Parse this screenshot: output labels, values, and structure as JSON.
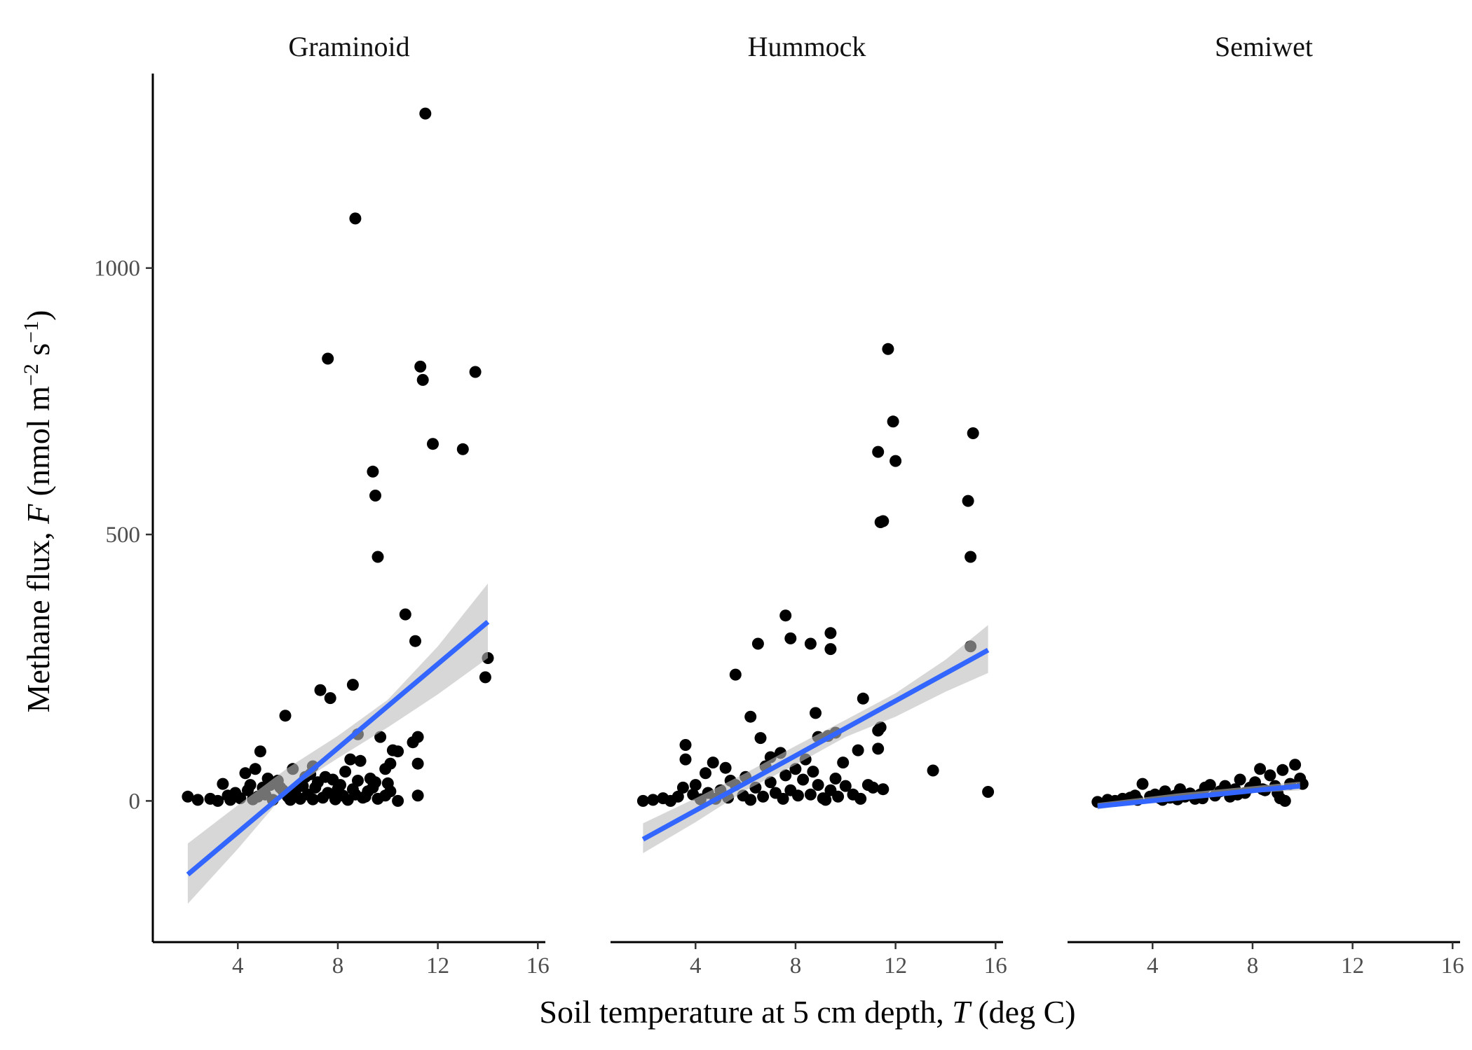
{
  "chart_data": {
    "type": "scatter",
    "layout": "faceted, 3 panels sharing y-axis, linear fit with confidence band",
    "xlabel_parts": [
      "Soil temperature at 5 cm depth, ",
      "T",
      " (deg C)"
    ],
    "ylabel_parts": [
      "Methane flux, ",
      "F",
      " (nmol m",
      "−2",
      " s",
      "−1",
      ")"
    ],
    "xlim": [
      0.6,
      16.3
    ],
    "ylim": [
      -265,
      1365
    ],
    "x_ticks": [
      4,
      8,
      12,
      16
    ],
    "y_ticks": [
      0,
      500,
      1000
    ],
    "x_tick_labels": [
      "4",
      "8",
      "12",
      "16"
    ],
    "y_tick_labels": [
      "0",
      "500",
      "1000"
    ],
    "grid": false,
    "colors": {
      "points": "#000000",
      "fit_line": "#3366ff",
      "ci_band": "#bdbdbd"
    },
    "panels": [
      {
        "title": "Graminoid",
        "fit": {
          "x": [
            2.0,
            14.0
          ],
          "y": [
            -138,
            336
          ]
        },
        "ci": {
          "x": [
            2.0,
            4.0,
            6.0,
            8.0,
            10.0,
            12.0,
            14.0
          ],
          "upper": [
            -80,
            -8,
            62,
            122,
            190,
            290,
            408
          ],
          "lower": [
            -193,
            -90,
            20,
            80,
            138,
            200,
            268
          ]
        },
        "points": [
          [
            11.5,
            1290
          ],
          [
            8.7,
            1093
          ],
          [
            7.6,
            830
          ],
          [
            11.3,
            815
          ],
          [
            11.4,
            790
          ],
          [
            13.5,
            805
          ],
          [
            11.8,
            670
          ],
          [
            13.0,
            660
          ],
          [
            9.4,
            618
          ],
          [
            9.5,
            573
          ],
          [
            9.6,
            458
          ],
          [
            10.7,
            350
          ],
          [
            11.1,
            300
          ],
          [
            14.0,
            268
          ],
          [
            13.9,
            232
          ],
          [
            8.6,
            218
          ],
          [
            7.3,
            208
          ],
          [
            7.7,
            193
          ],
          [
            5.9,
            160
          ],
          [
            8.8,
            125
          ],
          [
            9.7,
            120
          ],
          [
            11.2,
            120
          ],
          [
            11.0,
            110
          ],
          [
            10.2,
            95
          ],
          [
            10.4,
            93
          ],
          [
            4.9,
            93
          ],
          [
            11.2,
            70
          ],
          [
            10.1,
            70
          ],
          [
            8.5,
            78
          ],
          [
            8.9,
            75
          ],
          [
            6.2,
            60
          ],
          [
            4.7,
            60
          ],
          [
            4.3,
            52
          ],
          [
            7.0,
            65
          ],
          [
            5.2,
            42
          ],
          [
            3.4,
            32
          ],
          [
            4.5,
            30
          ],
          [
            6.7,
            45
          ],
          [
            5.6,
            38
          ],
          [
            9.9,
            60
          ],
          [
            9.3,
            42
          ],
          [
            10.0,
            33
          ],
          [
            9.5,
            35
          ],
          [
            8.1,
            30
          ],
          [
            8.6,
            22
          ],
          [
            2.0,
            8
          ],
          [
            2.4,
            2
          ],
          [
            2.9,
            4
          ],
          [
            3.2,
            0
          ],
          [
            3.6,
            10
          ],
          [
            3.9,
            15
          ],
          [
            4.1,
            5
          ],
          [
            4.4,
            20
          ],
          [
            4.8,
            8
          ],
          [
            5.1,
            12
          ],
          [
            5.4,
            2
          ],
          [
            5.7,
            25
          ],
          [
            6.0,
            8
          ],
          [
            6.3,
            18
          ],
          [
            6.5,
            4
          ],
          [
            6.8,
            12
          ],
          [
            7.1,
            25
          ],
          [
            7.4,
            6
          ],
          [
            7.6,
            15
          ],
          [
            7.9,
            3
          ],
          [
            8.2,
            10
          ],
          [
            8.4,
            2
          ],
          [
            8.7,
            12
          ],
          [
            9.0,
            6
          ],
          [
            9.2,
            18
          ],
          [
            9.6,
            4
          ],
          [
            9.9,
            10
          ],
          [
            10.4,
            0
          ],
          [
            11.2,
            10
          ],
          [
            7.2,
            35
          ],
          [
            6.6,
            28
          ],
          [
            5.8,
            20
          ],
          [
            5.0,
            25
          ],
          [
            7.8,
            40
          ],
          [
            8.0,
            22
          ],
          [
            6.9,
            50
          ],
          [
            7.5,
            45
          ],
          [
            8.3,
            55
          ],
          [
            9.1,
            8
          ],
          [
            8.8,
            38
          ],
          [
            7.0,
            3
          ],
          [
            6.1,
            2
          ],
          [
            5.3,
            30
          ],
          [
            4.6,
            3
          ],
          [
            3.7,
            2
          ],
          [
            10.1,
            18
          ],
          [
            9.4,
            25
          ]
        ]
      },
      {
        "title": "Hummock",
        "fit": {
          "x": [
            1.9,
            15.7
          ],
          "y": [
            -72,
            283
          ]
        },
        "ci": {
          "x": [
            1.9,
            4.0,
            6.0,
            8.0,
            10.0,
            12.0,
            14.0,
            15.7
          ],
          "upper": [
            -42,
            5,
            52,
            103,
            152,
            202,
            265,
            330
          ],
          "lower": [
            -98,
            -40,
            20,
            68,
            120,
            158,
            205,
            240
          ]
        },
        "points": [
          [
            11.7,
            848
          ],
          [
            11.9,
            712
          ],
          [
            15.1,
            690
          ],
          [
            11.3,
            655
          ],
          [
            12.0,
            638
          ],
          [
            14.9,
            563
          ],
          [
            11.5,
            525
          ],
          [
            11.4,
            523
          ],
          [
            15.0,
            458
          ],
          [
            7.6,
            348
          ],
          [
            9.4,
            315
          ],
          [
            7.8,
            305
          ],
          [
            6.5,
            295
          ],
          [
            8.6,
            295
          ],
          [
            9.4,
            285
          ],
          [
            15.0,
            290
          ],
          [
            5.6,
            237
          ],
          [
            10.7,
            192
          ],
          [
            8.8,
            165
          ],
          [
            6.2,
            158
          ],
          [
            11.4,
            138
          ],
          [
            11.3,
            132
          ],
          [
            9.6,
            128
          ],
          [
            6.6,
            118
          ],
          [
            8.9,
            120
          ],
          [
            9.3,
            122
          ],
          [
            3.6,
            105
          ],
          [
            10.5,
            95
          ],
          [
            11.3,
            98
          ],
          [
            9.9,
            72
          ],
          [
            3.6,
            78
          ],
          [
            4.7,
            72
          ],
          [
            5.2,
            62
          ],
          [
            4.4,
            52
          ],
          [
            7.0,
            82
          ],
          [
            7.4,
            90
          ],
          [
            8.4,
            78
          ],
          [
            13.5,
            57
          ],
          [
            15.7,
            17
          ],
          [
            1.9,
            0
          ],
          [
            2.3,
            2
          ],
          [
            2.7,
            5
          ],
          [
            3.0,
            0
          ],
          [
            3.3,
            8
          ],
          [
            3.5,
            25
          ],
          [
            3.9,
            12
          ],
          [
            4.2,
            3
          ],
          [
            4.5,
            15
          ],
          [
            4.8,
            4
          ],
          [
            5.0,
            20
          ],
          [
            5.3,
            6
          ],
          [
            5.6,
            30
          ],
          [
            5.9,
            10
          ],
          [
            6.2,
            2
          ],
          [
            6.4,
            25
          ],
          [
            6.7,
            8
          ],
          [
            7.0,
            35
          ],
          [
            7.2,
            15
          ],
          [
            7.5,
            4
          ],
          [
            7.8,
            20
          ],
          [
            8.1,
            10
          ],
          [
            8.3,
            40
          ],
          [
            8.6,
            12
          ],
          [
            8.9,
            30
          ],
          [
            9.1,
            5
          ],
          [
            9.4,
            20
          ],
          [
            9.7,
            8
          ],
          [
            10.0,
            28
          ],
          [
            10.3,
            12
          ],
          [
            10.6,
            4
          ],
          [
            10.9,
            30
          ],
          [
            11.1,
            25
          ],
          [
            11.5,
            22
          ],
          [
            9.6,
            42
          ],
          [
            8.7,
            55
          ],
          [
            6.8,
            65
          ],
          [
            5.4,
            38
          ],
          [
            7.6,
            48
          ],
          [
            4.0,
            30
          ],
          [
            9.2,
            2
          ],
          [
            6.0,
            45
          ],
          [
            8.0,
            60
          ]
        ]
      },
      {
        "title": "Semiwet",
        "fit": {
          "x": [
            1.8,
            9.9
          ],
          "y": [
            -10,
            28
          ]
        },
        "ci": {
          "x": [
            1.8,
            5.0,
            9.9
          ],
          "upper": [
            -4,
            14,
            36
          ],
          "lower": [
            -16,
            8,
            20
          ]
        },
        "points": [
          [
            1.8,
            -2
          ],
          [
            2.2,
            2
          ],
          [
            2.5,
            0
          ],
          [
            2.8,
            4
          ],
          [
            3.1,
            6
          ],
          [
            3.4,
            2
          ],
          [
            3.6,
            32
          ],
          [
            3.9,
            8
          ],
          [
            4.1,
            12
          ],
          [
            4.3,
            5
          ],
          [
            4.5,
            18
          ],
          [
            4.7,
            6
          ],
          [
            4.9,
            10
          ],
          [
            5.1,
            22
          ],
          [
            5.3,
            8
          ],
          [
            5.5,
            14
          ],
          [
            5.7,
            4
          ],
          [
            5.9,
            12
          ],
          [
            6.1,
            25
          ],
          [
            6.3,
            30
          ],
          [
            6.5,
            10
          ],
          [
            6.7,
            18
          ],
          [
            6.9,
            28
          ],
          [
            7.1,
            8
          ],
          [
            7.3,
            22
          ],
          [
            7.5,
            40
          ],
          [
            7.7,
            15
          ],
          [
            7.9,
            25
          ],
          [
            8.1,
            35
          ],
          [
            8.3,
            60
          ],
          [
            8.5,
            20
          ],
          [
            8.7,
            48
          ],
          [
            8.9,
            28
          ],
          [
            9.1,
            5
          ],
          [
            9.2,
            58
          ],
          [
            9.3,
            0
          ],
          [
            9.5,
            32
          ],
          [
            9.7,
            68
          ],
          [
            9.9,
            42
          ],
          [
            10.0,
            32
          ],
          [
            9.0,
            15
          ],
          [
            8.4,
            22
          ],
          [
            7.4,
            12
          ],
          [
            6.0,
            5
          ],
          [
            5.0,
            3
          ],
          [
            4.4,
            2
          ],
          [
            3.3,
            10
          ]
        ]
      }
    ]
  }
}
